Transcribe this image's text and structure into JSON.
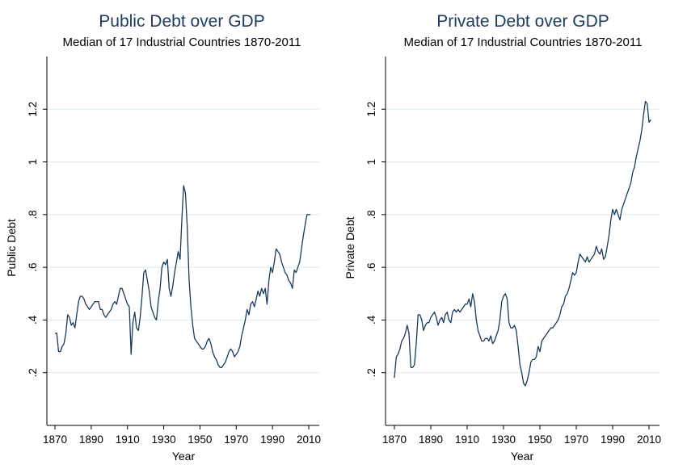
{
  "chart_data": [
    {
      "type": "line",
      "title": "Public Debt over GDP",
      "subtitle": "Median of 17 Industrial Countries 1870-2011",
      "xlabel": "Year",
      "ylabel": "Public Debt",
      "xlim": [
        1870,
        2011
      ],
      "ylim": [
        0,
        1.4
      ],
      "xticks": [
        1870,
        1890,
        1910,
        1930,
        1950,
        1970,
        1990,
        2010
      ],
      "yticks": [
        0.2,
        0.4,
        0.6,
        0.8,
        1.0,
        1.2
      ],
      "ytick_labels": [
        ".2",
        ".4",
        ".6",
        ".8",
        "1",
        "1.2"
      ],
      "grid": true,
      "line_color": "#1a3a5c",
      "x": [
        1870,
        1871,
        1872,
        1873,
        1874,
        1875,
        1876,
        1877,
        1878,
        1879,
        1880,
        1881,
        1882,
        1883,
        1884,
        1885,
        1886,
        1887,
        1888,
        1889,
        1890,
        1891,
        1892,
        1893,
        1894,
        1895,
        1896,
        1897,
        1898,
        1899,
        1900,
        1901,
        1902,
        1903,
        1904,
        1905,
        1906,
        1907,
        1908,
        1909,
        1910,
        1911,
        1912,
        1913,
        1914,
        1915,
        1916,
        1917,
        1918,
        1919,
        1920,
        1921,
        1922,
        1923,
        1924,
        1925,
        1926,
        1927,
        1928,
        1929,
        1930,
        1931,
        1932,
        1933,
        1934,
        1935,
        1936,
        1937,
        1938,
        1939,
        1940,
        1941,
        1942,
        1943,
        1944,
        1945,
        1946,
        1947,
        1948,
        1949,
        1950,
        1951,
        1952,
        1953,
        1954,
        1955,
        1956,
        1957,
        1958,
        1959,
        1960,
        1961,
        1962,
        1963,
        1964,
        1965,
        1966,
        1967,
        1968,
        1969,
        1970,
        1971,
        1972,
        1973,
        1974,
        1975,
        1976,
        1977,
        1978,
        1979,
        1980,
        1981,
        1982,
        1983,
        1984,
        1985,
        1986,
        1987,
        1988,
        1989,
        1990,
        1991,
        1992,
        1993,
        1994,
        1995,
        1996,
        1997,
        1998,
        1999,
        2000,
        2001,
        2002,
        2003,
        2004,
        2005,
        2006,
        2007,
        2008,
        2009,
        2010,
        2011
      ],
      "values": [
        0.35,
        0.35,
        0.28,
        0.28,
        0.3,
        0.31,
        0.35,
        0.42,
        0.41,
        0.38,
        0.39,
        0.37,
        0.42,
        0.47,
        0.49,
        0.49,
        0.48,
        0.46,
        0.45,
        0.44,
        0.45,
        0.46,
        0.47,
        0.47,
        0.47,
        0.44,
        0.44,
        0.42,
        0.41,
        0.42,
        0.43,
        0.44,
        0.46,
        0.47,
        0.46,
        0.49,
        0.52,
        0.52,
        0.5,
        0.48,
        0.46,
        0.45,
        0.27,
        0.39,
        0.43,
        0.37,
        0.36,
        0.41,
        0.49,
        0.58,
        0.59,
        0.55,
        0.51,
        0.45,
        0.43,
        0.41,
        0.4,
        0.47,
        0.52,
        0.6,
        0.62,
        0.61,
        0.63,
        0.52,
        0.49,
        0.53,
        0.58,
        0.62,
        0.66,
        0.63,
        0.78,
        0.91,
        0.88,
        0.75,
        0.55,
        0.45,
        0.38,
        0.33,
        0.32,
        0.31,
        0.3,
        0.29,
        0.29,
        0.3,
        0.32,
        0.33,
        0.31,
        0.28,
        0.26,
        0.25,
        0.23,
        0.22,
        0.22,
        0.23,
        0.24,
        0.26,
        0.28,
        0.29,
        0.28,
        0.26,
        0.27,
        0.28,
        0.3,
        0.34,
        0.37,
        0.4,
        0.44,
        0.42,
        0.46,
        0.47,
        0.45,
        0.48,
        0.51,
        0.49,
        0.52,
        0.5,
        0.52,
        0.46,
        0.55,
        0.6,
        0.58,
        0.62,
        0.67,
        0.66,
        0.65,
        0.62,
        0.6,
        0.58,
        0.57,
        0.55,
        0.54,
        0.52,
        0.59,
        0.58,
        0.6,
        0.62,
        0.67,
        0.72,
        0.76,
        0.8,
        0.8,
        0.8
      ]
    },
    {
      "type": "line",
      "title": "Private Debt over GDP",
      "subtitle": "Median of 17 Industrial Countries 1870-2011",
      "xlabel": "Year",
      "ylabel": "Private Debt",
      "xlim": [
        1870,
        2011
      ],
      "ylim": [
        0,
        1.4
      ],
      "xticks": [
        1870,
        1890,
        1910,
        1930,
        1950,
        1970,
        1990,
        2010
      ],
      "yticks": [
        0.2,
        0.4,
        0.6,
        0.8,
        1.0,
        1.2
      ],
      "ytick_labels": [
        ".2",
        ".4",
        ".6",
        ".8",
        "1",
        "1.2"
      ],
      "grid": true,
      "line_color": "#1a3a5c",
      "x": [
        1870,
        1871,
        1872,
        1873,
        1874,
        1875,
        1876,
        1877,
        1878,
        1879,
        1880,
        1881,
        1882,
        1883,
        1884,
        1885,
        1886,
        1887,
        1888,
        1889,
        1890,
        1891,
        1892,
        1893,
        1894,
        1895,
        1896,
        1897,
        1898,
        1899,
        1900,
        1901,
        1902,
        1903,
        1904,
        1905,
        1906,
        1907,
        1908,
        1909,
        1910,
        1911,
        1912,
        1913,
        1914,
        1915,
        1916,
        1917,
        1918,
        1919,
        1920,
        1921,
        1922,
        1923,
        1924,
        1925,
        1926,
        1927,
        1928,
        1929,
        1930,
        1931,
        1932,
        1933,
        1934,
        1935,
        1936,
        1937,
        1938,
        1939,
        1940,
        1941,
        1942,
        1943,
        1944,
        1945,
        1946,
        1947,
        1948,
        1949,
        1950,
        1951,
        1952,
        1953,
        1954,
        1955,
        1956,
        1957,
        1958,
        1959,
        1960,
        1961,
        1962,
        1963,
        1964,
        1965,
        1966,
        1967,
        1968,
        1969,
        1970,
        1971,
        1972,
        1973,
        1974,
        1975,
        1976,
        1977,
        1978,
        1979,
        1980,
        1981,
        1982,
        1983,
        1984,
        1985,
        1986,
        1987,
        1988,
        1989,
        1990,
        1991,
        1992,
        1993,
        1994,
        1995,
        1996,
        1997,
        1998,
        1999,
        2000,
        2001,
        2002,
        2003,
        2004,
        2005,
        2006,
        2007,
        2008,
        2009,
        2010,
        2011
      ],
      "values": [
        0.18,
        0.26,
        0.27,
        0.29,
        0.32,
        0.33,
        0.35,
        0.38,
        0.35,
        0.22,
        0.22,
        0.23,
        0.31,
        0.42,
        0.42,
        0.4,
        0.36,
        0.38,
        0.39,
        0.39,
        0.41,
        0.42,
        0.43,
        0.41,
        0.38,
        0.4,
        0.41,
        0.39,
        0.42,
        0.43,
        0.4,
        0.39,
        0.43,
        0.44,
        0.43,
        0.44,
        0.43,
        0.44,
        0.45,
        0.46,
        0.46,
        0.48,
        0.45,
        0.5,
        0.47,
        0.4,
        0.36,
        0.34,
        0.32,
        0.32,
        0.33,
        0.33,
        0.32,
        0.34,
        0.31,
        0.32,
        0.34,
        0.36,
        0.4,
        0.47,
        0.49,
        0.5,
        0.48,
        0.39,
        0.37,
        0.37,
        0.38,
        0.36,
        0.3,
        0.23,
        0.2,
        0.16,
        0.15,
        0.17,
        0.2,
        0.24,
        0.25,
        0.25,
        0.26,
        0.3,
        0.28,
        0.32,
        0.33,
        0.34,
        0.35,
        0.36,
        0.37,
        0.37,
        0.38,
        0.39,
        0.4,
        0.42,
        0.45,
        0.46,
        0.49,
        0.5,
        0.52,
        0.55,
        0.58,
        0.57,
        0.58,
        0.62,
        0.65,
        0.64,
        0.63,
        0.62,
        0.64,
        0.62,
        0.63,
        0.64,
        0.65,
        0.68,
        0.66,
        0.65,
        0.67,
        0.63,
        0.64,
        0.68,
        0.72,
        0.78,
        0.82,
        0.8,
        0.82,
        0.8,
        0.78,
        0.82,
        0.84,
        0.86,
        0.88,
        0.9,
        0.92,
        0.96,
        0.98,
        1.02,
        1.05,
        1.08,
        1.12,
        1.18,
        1.23,
        1.22,
        1.15,
        1.16
      ]
    }
  ]
}
